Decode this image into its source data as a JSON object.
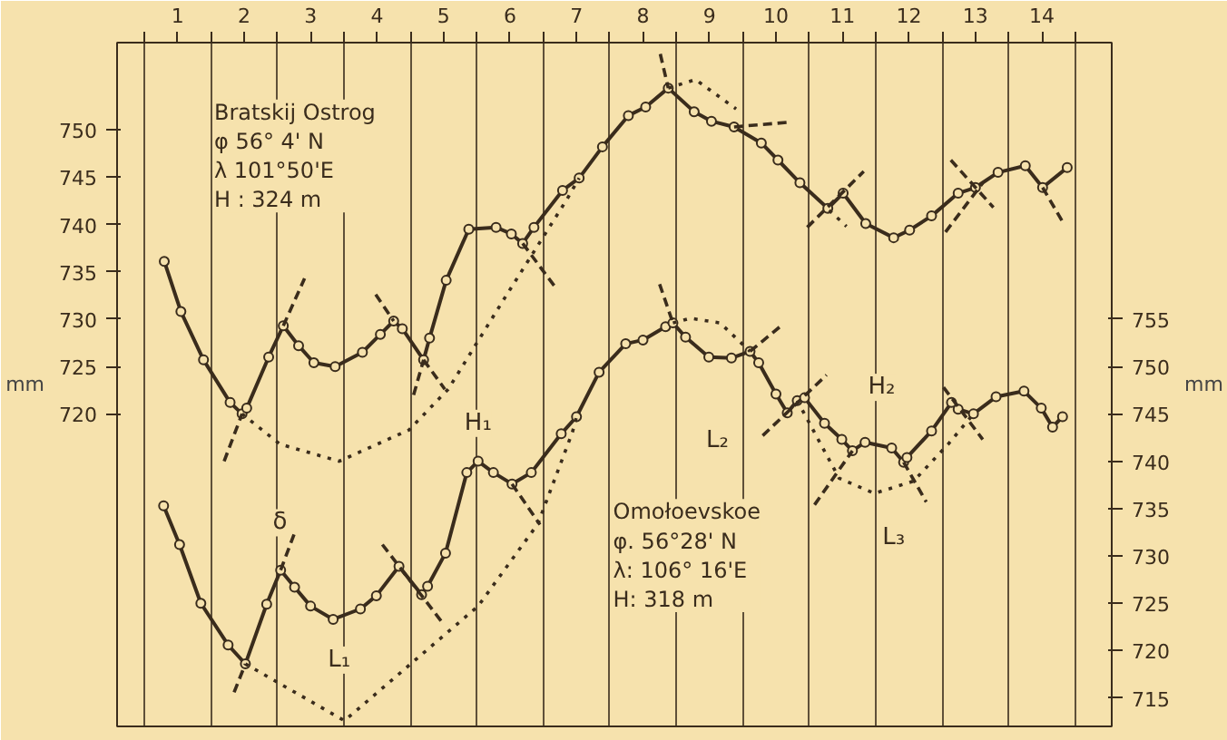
{
  "chart_data": {
    "type": "line",
    "ylabel": "mm",
    "y2label": "mm",
    "xlim": [
      -0.41,
      14.55
    ],
    "ylim": [
      687.0,
      759.2
    ],
    "y2lim": [
      712.0,
      784.2
    ],
    "xticks": [
      {
        "value": 0.5,
        "label": "1"
      },
      {
        "value": 1.5,
        "label": "2"
      },
      {
        "value": 2.5,
        "label": "3"
      },
      {
        "value": 3.5,
        "label": "4"
      },
      {
        "value": 4.5,
        "label": "5"
      },
      {
        "value": 5.5,
        "label": "6"
      },
      {
        "value": 6.5,
        "label": "7"
      },
      {
        "value": 7.5,
        "label": "8"
      },
      {
        "value": 8.5,
        "label": "9"
      },
      {
        "value": 9.5,
        "label": "10"
      },
      {
        "value": 10.5,
        "label": "11"
      },
      {
        "value": 11.5,
        "label": "12"
      },
      {
        "value": 12.5,
        "label": "13"
      },
      {
        "value": 13.5,
        "label": "14"
      },
      {
        "value": 0,
        "label": null
      },
      {
        "value": 1,
        "label": null
      },
      {
        "value": 2,
        "label": null
      },
      {
        "value": 3,
        "label": null
      },
      {
        "value": 4,
        "label": null
      },
      {
        "value": 5,
        "label": null
      },
      {
        "value": 6,
        "label": null
      },
      {
        "value": 7,
        "label": null
      },
      {
        "value": 8,
        "label": null
      },
      {
        "value": 9,
        "label": null
      },
      {
        "value": 10,
        "label": null
      },
      {
        "value": 11,
        "label": null
      },
      {
        "value": 12,
        "label": null
      },
      {
        "value": 13,
        "label": null
      },
      {
        "value": 14,
        "label": null
      }
    ],
    "yticks": [
      720,
      725,
      730,
      735,
      740,
      745,
      750
    ],
    "y2ticks": [
      715,
      720,
      725,
      730,
      735,
      740,
      745,
      750,
      755
    ],
    "grid": "x",
    "annotations": [
      "Bratskij Ostrog\nφ   56° 4' N\nλ   101°50'E\nH :  324 m",
      "Omołoevskoe\nφ.  56°28' N\nλ: 106° 16'E\nH: 318 m",
      "H₁",
      "L₁",
      "δ",
      "L₂",
      "H₂",
      "L₃"
    ],
    "series": [
      {
        "color": "#3a2c1c",
        "axis": "y",
        "marker": "circle",
        "line_style": "solid",
        "x": [
          0.3,
          0.55,
          0.89,
          1.29,
          1.47,
          1.54,
          1.87,
          2.09,
          2.32,
          2.55,
          2.87,
          3.28,
          3.55,
          3.75,
          3.88,
          4.2,
          4.29,
          4.54,
          4.88,
          5.29,
          5.52,
          5.69,
          5.86,
          6.29,
          6.54,
          6.89,
          7.28,
          7.54,
          7.88,
          8.27,
          8.53,
          8.87,
          9.28,
          9.53,
          9.86,
          10.28,
          10.51,
          10.85,
          11.27,
          11.51,
          11.84,
          12.24,
          12.5,
          12.84,
          13.25,
          13.51,
          13.88
        ],
        "values": [
          736.1,
          730.8,
          725.7,
          721.2,
          720.0,
          720.6,
          726.0,
          729.3,
          727.2,
          725.4,
          725.0,
          726.5,
          728.4,
          729.8,
          729.0,
          725.7,
          728.0,
          734.1,
          739.5,
          739.7,
          739.0,
          738.0,
          739.7,
          743.6,
          744.9,
          748.2,
          751.5,
          752.4,
          754.4,
          751.9,
          750.9,
          750.3,
          748.6,
          746.8,
          744.4,
          741.7,
          743.3,
          740.1,
          738.6,
          739.4,
          740.9,
          743.3,
          743.9,
          745.5,
          746.2,
          743.9,
          746.0
        ]
      },
      {
        "color": "#3a2c1c",
        "axis": "y2",
        "marker": "circle",
        "line_style": "solid",
        "x": [
          0.29,
          0.53,
          0.85,
          1.26,
          1.52,
          1.84,
          2.05,
          2.26,
          2.5,
          2.84,
          3.25,
          3.49,
          3.83,
          4.17,
          4.26,
          4.53,
          4.85,
          5.02,
          5.25,
          5.53,
          5.82,
          6.27,
          6.5,
          6.84,
          7.24,
          7.5,
          7.84,
          7.95,
          8.14,
          8.49,
          8.83,
          9.11,
          9.24,
          9.5,
          9.67,
          9.82,
          9.93,
          10.23,
          10.49,
          10.65,
          10.84,
          11.24,
          11.42,
          11.47,
          11.84,
          12.14,
          12.24,
          12.47,
          12.81,
          13.23,
          13.49,
          13.66,
          13.81
        ],
        "values": [
          735.3,
          731.2,
          725.0,
          720.6,
          718.6,
          724.9,
          728.5,
          726.7,
          724.7,
          723.3,
          724.4,
          725.8,
          728.9,
          725.9,
          726.8,
          730.3,
          738.8,
          740.0,
          738.8,
          737.6,
          738.8,
          742.9,
          744.7,
          749.4,
          752.4,
          752.8,
          754.2,
          754.6,
          753.1,
          751.0,
          750.9,
          751.6,
          750.4,
          747.1,
          745.1,
          746.4,
          746.7,
          744.0,
          742.3,
          741.1,
          742.0,
          741.4,
          739.9,
          740.4,
          743.2,
          746.2,
          745.5,
          745.0,
          746.8,
          747.4,
          745.6,
          743.6,
          744.7
        ]
      },
      {
        "color": "#3a2c1c",
        "axis": "y",
        "marker": "none",
        "line_style": "dotted",
        "x": [
          1.47,
          2.04,
          2.93,
          3.98,
          4.57,
          5.39,
          6.36,
          6.54
        ],
        "values": [
          720.0,
          716.8,
          715.0,
          718.3,
          722.6,
          731.9,
          742.7,
          744.9
        ]
      },
      {
        "color": "#3a2c1c",
        "axis": "y",
        "marker": "none",
        "line_style": "dotted",
        "x": [
          7.88,
          8.29,
          8.9
        ],
        "values": [
          754.4,
          755.3,
          752.2
        ]
      },
      {
        "color": "#3a2c1c",
        "axis": "y",
        "marker": "none",
        "line_style": "dotted",
        "x": [
          10.3,
          10.56
        ],
        "values": [
          741.5,
          739.8
        ]
      },
      {
        "color": "#3a2c1c",
        "axis": "y2",
        "marker": "none",
        "line_style": "dotted",
        "x": [
          1.52,
          3.01,
          5.02,
          5.92,
          6.44,
          6.5
        ],
        "values": [
          718.6,
          712.6,
          724.7,
          733.4,
          743.1,
          744.7
        ]
      },
      {
        "color": "#3a2c1c",
        "axis": "y2",
        "marker": "none",
        "line_style": "dotted",
        "x": [
          7.95,
          8.21,
          8.66,
          9.11
        ],
        "values": [
          754.6,
          755.1,
          754.6,
          751.6
        ]
      },
      {
        "color": "#3a2c1c",
        "axis": "y2",
        "marker": "none",
        "line_style": "dotted",
        "x": [
          9.82,
          10.45,
          10.98,
          11.57,
          12.09,
          12.47
        ],
        "values": [
          746.4,
          738.2,
          736.6,
          737.9,
          741.8,
          745.0
        ]
      },
      {
        "color": "#3a2c1c",
        "axis": "y",
        "marker": "none",
        "line_style": "dashed",
        "x": [
          1.2,
          1.47
        ],
        "values": [
          715.0,
          720.0
        ]
      },
      {
        "color": "#3a2c1c",
        "axis": "y",
        "marker": "none",
        "line_style": "dashed",
        "x": [
          2.09,
          2.41
        ],
        "values": [
          729.3,
          734.3
        ]
      },
      {
        "color": "#3a2c1c",
        "axis": "y",
        "marker": "none",
        "line_style": "dashed",
        "x": [
          3.48,
          3.75
        ],
        "values": [
          732.6,
          729.8
        ]
      },
      {
        "color": "#3a2c1c",
        "axis": "y",
        "marker": "none",
        "line_style": "dashed",
        "x": [
          4.05,
          4.2
        ],
        "values": [
          722.0,
          725.7
        ]
      },
      {
        "color": "#3a2c1c",
        "axis": "y",
        "marker": "none",
        "line_style": "dashed",
        "x": [
          4.2,
          4.52
        ],
        "values": [
          725.7,
          722.6
        ]
      },
      {
        "color": "#3a2c1c",
        "axis": "y",
        "marker": "none",
        "line_style": "dashed",
        "x": [
          5.69,
          6.21
        ],
        "values": [
          738.0,
          733.1
        ]
      },
      {
        "color": "#3a2c1c",
        "axis": "y",
        "marker": "none",
        "line_style": "dashed",
        "x": [
          7.76,
          7.88
        ],
        "values": [
          758.0,
          754.4
        ]
      },
      {
        "color": "#3a2c1c",
        "axis": "y",
        "marker": "none",
        "line_style": "dashed",
        "x": [
          8.87,
          9.7
        ],
        "values": [
          750.3,
          750.8
        ]
      },
      {
        "color": "#3a2c1c",
        "axis": "y",
        "marker": "none",
        "line_style": "dashed",
        "x": [
          9.97,
          10.82
        ],
        "values": [
          739.7,
          745.6
        ]
      },
      {
        "color": "#3a2c1c",
        "axis": "y",
        "marker": "none",
        "line_style": "dashed",
        "x": [
          12.13,
          12.77
        ],
        "values": [
          746.8,
          741.8
        ]
      },
      {
        "color": "#3a2c1c",
        "axis": "y",
        "marker": "none",
        "line_style": "dashed",
        "x": [
          12.05,
          12.61
        ],
        "values": [
          739.2,
          744.4
        ]
      },
      {
        "color": "#3a2c1c",
        "axis": "y",
        "marker": "none",
        "line_style": "dashed",
        "x": [
          13.51,
          13.81
        ],
        "values": [
          743.9,
          740.3
        ]
      },
      {
        "color": "#3a2c1c",
        "axis": "y2",
        "marker": "none",
        "line_style": "dashed",
        "x": [
          1.35,
          1.52
        ],
        "values": [
          715.6,
          718.6
        ]
      },
      {
        "color": "#3a2c1c",
        "axis": "y2",
        "marker": "none",
        "line_style": "dashed",
        "x": [
          2.05,
          2.28
        ],
        "values": [
          728.5,
          732.8
        ]
      },
      {
        "color": "#3a2c1c",
        "axis": "y2",
        "marker": "none",
        "line_style": "dashed",
        "x": [
          3.58,
          4.5
        ],
        "values": [
          731.2,
          722.8
        ]
      },
      {
        "color": "#3a2c1c",
        "axis": "y2",
        "marker": "none",
        "line_style": "dashed",
        "x": [
          5.53,
          5.95
        ],
        "values": [
          737.6,
          733.3
        ]
      },
      {
        "color": "#3a2c1c",
        "axis": "y2",
        "marker": "none",
        "line_style": "dashed",
        "x": [
          7.75,
          7.95
        ],
        "values": [
          758.7,
          754.6
        ]
      },
      {
        "color": "#3a2c1c",
        "axis": "y2",
        "marker": "none",
        "line_style": "dashed",
        "x": [
          9.11,
          9.56
        ],
        "values": [
          751.6,
          754.2
        ]
      },
      {
        "color": "#3a2c1c",
        "axis": "y2",
        "marker": "none",
        "line_style": "dashed",
        "x": [
          9.3,
          10.26
        ],
        "values": [
          742.7,
          749.1
        ]
      },
      {
        "color": "#3a2c1c",
        "axis": "y2",
        "marker": "none",
        "line_style": "dashed",
        "x": [
          10.08,
          10.65
        ],
        "values": [
          735.4,
          741.1
        ]
      },
      {
        "color": "#3a2c1c",
        "axis": "y2",
        "marker": "none",
        "line_style": "dashed",
        "x": [
          11.42,
          11.76
        ],
        "values": [
          739.9,
          735.7
        ]
      },
      {
        "color": "#3a2c1c",
        "axis": "y2",
        "marker": "none",
        "line_style": "dashed",
        "x": [
          12.02,
          12.61
        ],
        "values": [
          747.8,
          742.3
        ]
      }
    ]
  }
}
